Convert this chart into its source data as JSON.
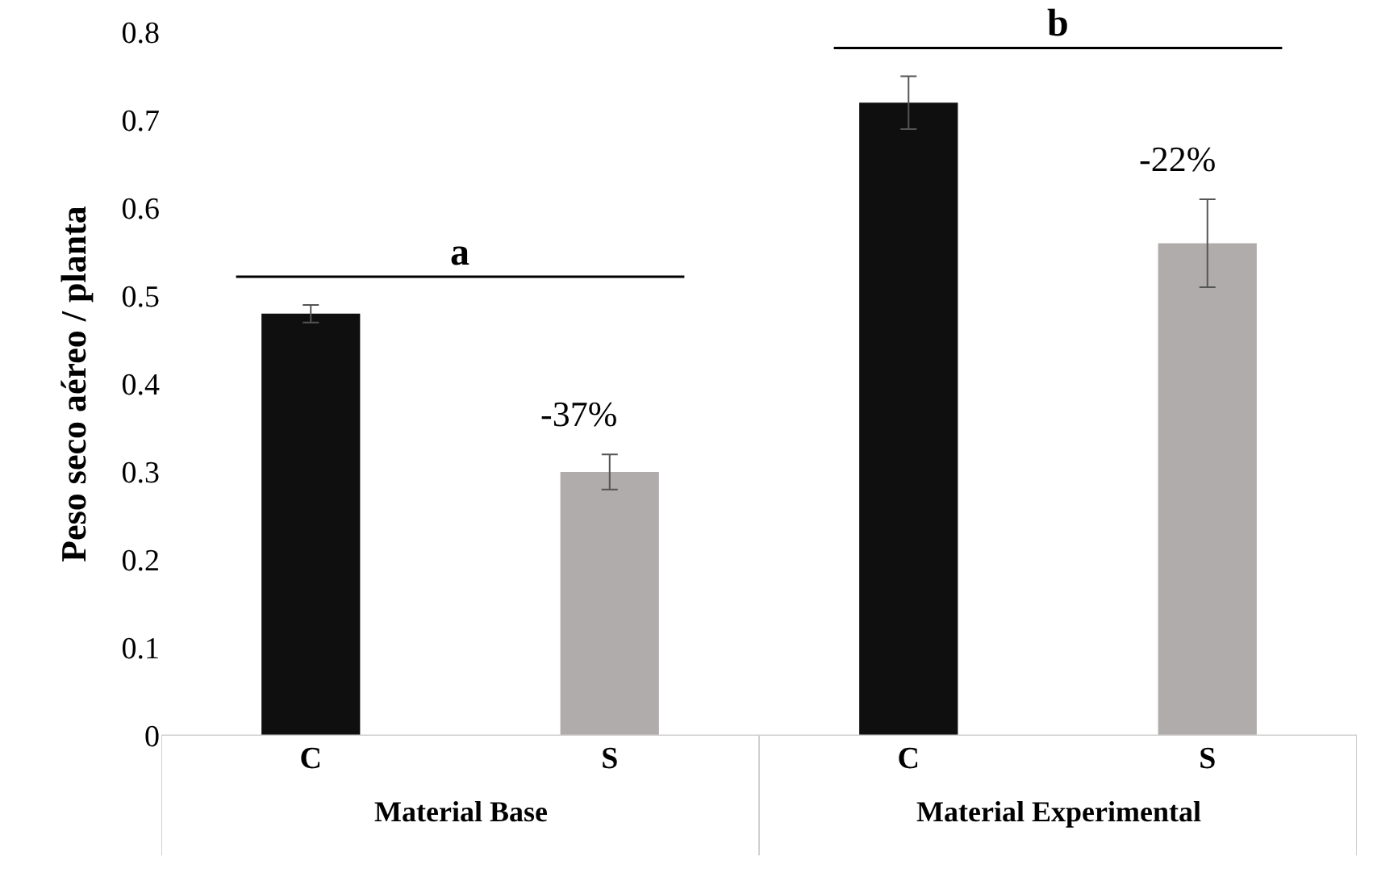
{
  "chart_data": {
    "type": "bar",
    "ylabel": "Peso seco aéreo / planta",
    "categories": [
      "C",
      "S",
      "C",
      "S"
    ],
    "values": [
      0.48,
      0.3,
      0.72,
      0.56
    ],
    "colors": [
      "#0f0f0f",
      "#b0acab",
      "#0f0f0f",
      "#b0acab"
    ],
    "errors": [
      0.01,
      0.02,
      0.03,
      0.05
    ],
    "ylim": [
      0,
      0.8
    ],
    "yticks": [
      0,
      0.1,
      0.2,
      0.3,
      0.4,
      0.5,
      0.6,
      0.7,
      0.8
    ],
    "annotations": [
      "a",
      "b",
      "-37%",
      "-22%",
      "Material Base",
      "Material Experimental"
    ],
    "legend": false
  }
}
